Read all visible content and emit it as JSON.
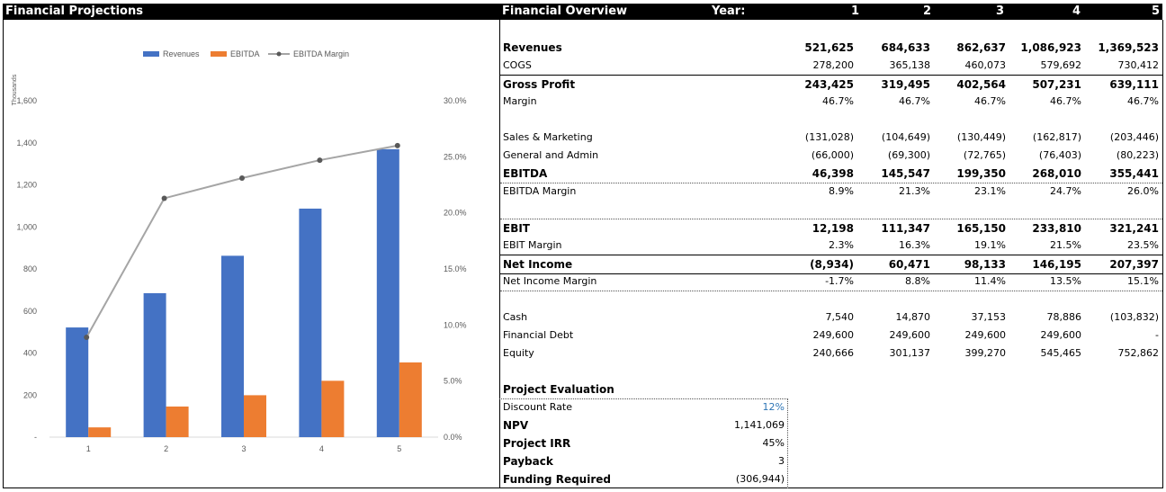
{
  "left_title": "Financial Projections",
  "right_header": {
    "title": "Financial Overview",
    "year_label": "Year:",
    "years": [
      "1",
      "2",
      "3",
      "4",
      "5"
    ]
  },
  "chart_data": {
    "type": "bar",
    "categories": [
      "1",
      "2",
      "3",
      "4",
      "5"
    ],
    "series": [
      {
        "name": "Revenues",
        "type": "bar",
        "axis": "left",
        "color": "#4472C4",
        "values": [
          521.625,
          684.633,
          862.637,
          1086.923,
          1369.523
        ]
      },
      {
        "name": "EBITDA",
        "type": "bar",
        "axis": "left",
        "color": "#ED7D31",
        "values": [
          46.398,
          145.547,
          199.35,
          268.01,
          355.441
        ]
      },
      {
        "name": "EBITDA Margin",
        "type": "line",
        "axis": "right",
        "color": "#A5A5A5",
        "values": [
          8.9,
          21.3,
          23.1,
          24.7,
          26.0
        ]
      }
    ],
    "ylabel": "Thousands",
    "ylim": [
      0,
      1600
    ],
    "y_ticks": [
      "-",
      "200",
      "400",
      "600",
      "800",
      "1,000",
      "1,200",
      "1,400",
      "1,600"
    ],
    "y2lim": [
      0,
      30
    ],
    "y2_ticks": [
      "0.0%",
      "5.0%",
      "10.0%",
      "15.0%",
      "20.0%",
      "25.0%",
      "30.0%"
    ],
    "legend_position": "top",
    "grid": false
  },
  "table": {
    "rows": [
      {
        "label": "Revenues",
        "values": [
          "521,625",
          "684,633",
          "862,637",
          "1,086,923",
          "1,369,523"
        ],
        "bold": true
      },
      {
        "label": "COGS",
        "values": [
          "278,200",
          "365,138",
          "460,073",
          "579,692",
          "730,412"
        ]
      },
      {
        "label": "Gross Profit",
        "values": [
          "243,425",
          "319,495",
          "402,564",
          "507,231",
          "639,111"
        ],
        "bold": true
      },
      {
        "label": "Margin",
        "values": [
          "46.7%",
          "46.7%",
          "46.7%",
          "46.7%",
          "46.7%"
        ]
      },
      {
        "label": "Sales & Marketing",
        "values": [
          "(131,028)",
          "(104,649)",
          "(130,449)",
          "(162,817)",
          "(203,446)"
        ]
      },
      {
        "label": "General and Admin",
        "values": [
          "(66,000)",
          "(69,300)",
          "(72,765)",
          "(76,403)",
          "(80,223)"
        ]
      },
      {
        "label": "EBITDA",
        "values": [
          "46,398",
          "145,547",
          "199,350",
          "268,010",
          "355,441"
        ],
        "bold": true
      },
      {
        "label": "EBITDA Margin",
        "values": [
          "8.9%",
          "21.3%",
          "23.1%",
          "24.7%",
          "26.0%"
        ]
      },
      {
        "label": "EBIT",
        "values": [
          "12,198",
          "111,347",
          "165,150",
          "233,810",
          "321,241"
        ],
        "bold": true
      },
      {
        "label": "EBIT Margin",
        "values": [
          "2.3%",
          "16.3%",
          "19.1%",
          "21.5%",
          "23.5%"
        ]
      },
      {
        "label": "Net Income",
        "values": [
          "(8,934)",
          "60,471",
          "98,133",
          "146,195",
          "207,397"
        ],
        "bold": true
      },
      {
        "label": "Net Income Margin",
        "values": [
          "-1.7%",
          "8.8%",
          "11.4%",
          "13.5%",
          "15.1%"
        ]
      },
      {
        "label": "Cash",
        "values": [
          "7,540",
          "14,870",
          "37,153",
          "78,886",
          "(103,832)"
        ]
      },
      {
        "label": "Financial Debt",
        "values": [
          "249,600",
          "249,600",
          "249,600",
          "249,600",
          "-"
        ]
      },
      {
        "label": "Equity",
        "values": [
          "240,666",
          "301,137",
          "399,270",
          "545,465",
          "752,862"
        ]
      }
    ]
  },
  "project_evaluation": {
    "title": "Project Evaluation",
    "items": [
      {
        "label": "Discount Rate",
        "value": "12%",
        "bold": false,
        "value_color": "#2E75B6"
      },
      {
        "label": "NPV",
        "value": "1,141,069",
        "bold": true
      },
      {
        "label": "Project IRR",
        "value": "45%",
        "bold": true
      },
      {
        "label": "Payback",
        "value": "3",
        "bold": true
      },
      {
        "label": "Funding Required",
        "value": "(306,944)",
        "bold": true
      }
    ]
  }
}
